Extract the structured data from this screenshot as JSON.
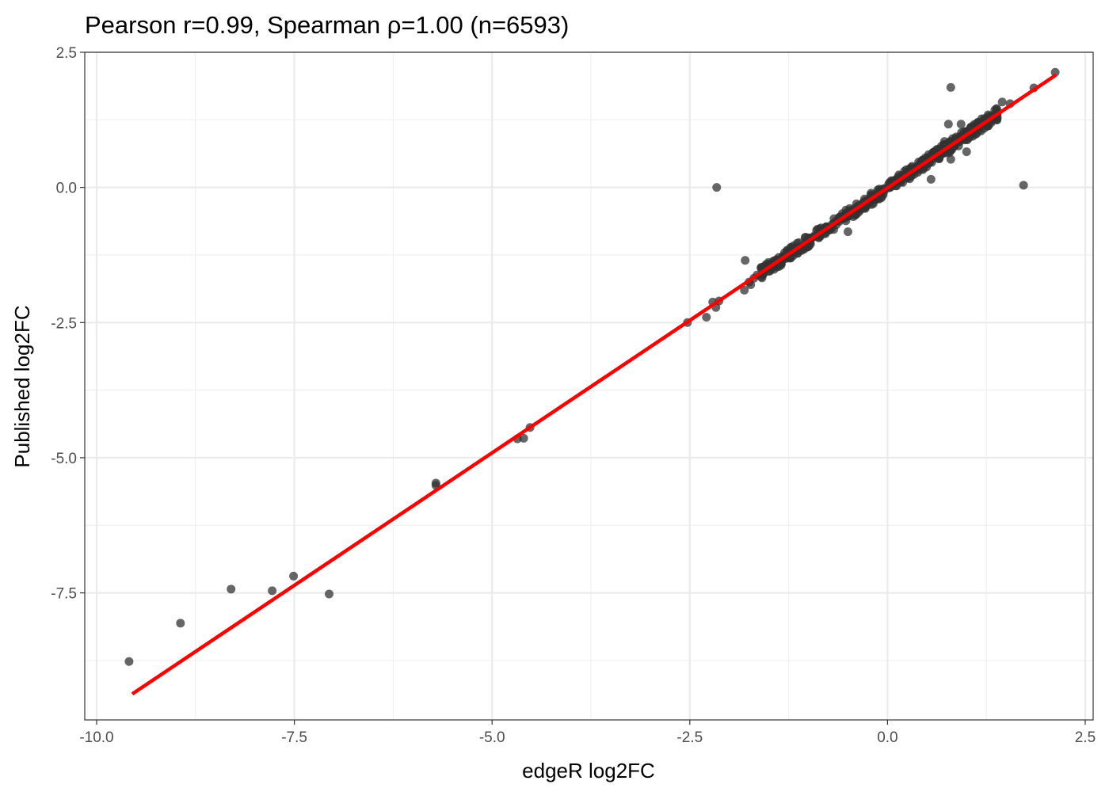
{
  "chart_data": {
    "type": "scatter",
    "title": "Pearson r=0.99, Spearman ρ=1.00 (n=6593)",
    "xlabel": "edgeR log2FC",
    "ylabel": "Published log2FC",
    "xlim": [
      -10.15,
      2.6
    ],
    "ylim": [
      -9.85,
      2.5
    ],
    "x_ticks": [
      -10.0,
      -7.5,
      -5.0,
      -2.5,
      0.0,
      2.5
    ],
    "x_tick_labels": [
      "-10.0",
      "-7.5",
      "-5.0",
      "-2.5",
      "0.0",
      "2.5"
    ],
    "y_ticks": [
      2.5,
      0.0,
      -2.5,
      -5.0,
      -7.5
    ],
    "y_tick_labels": [
      "2.5",
      "0.0",
      "-2.5",
      "-5.0",
      "-7.5"
    ],
    "grid": true,
    "legend": "none",
    "point_color": "#333333",
    "fit_line_color": "#ff0000",
    "series": [
      {
        "kind": "points",
        "x": [
          -9.59,
          -8.94,
          -8.3,
          -7.78,
          -7.51,
          -7.06,
          -5.71,
          -5.71,
          -4.68,
          -4.6,
          -4.52,
          -2.53,
          -2.29,
          -2.17,
          -2.21,
          -2.13,
          -1.81,
          -1.73,
          -1.75,
          -1.69,
          -1.65,
          -1.55,
          -1.43,
          -1.33,
          -1.24,
          -1.13,
          -1.04,
          -0.94,
          -0.85,
          -0.76,
          -0.68,
          -0.6,
          -0.52,
          -0.44,
          -0.36,
          -0.28,
          -0.2,
          -0.12,
          -0.04,
          0.04,
          0.12,
          0.2,
          0.28,
          0.36,
          0.44,
          0.52,
          0.6,
          0.68,
          0.76,
          0.84,
          0.92,
          1.0,
          1.1,
          1.2,
          1.3,
          1.39,
          1.45,
          1.55,
          1.85,
          2.12,
          -2.16,
          1.72,
          0.8,
          0.77,
          0.93,
          1.0,
          1.38,
          0.8,
          0.72,
          0.55,
          0.4,
          -0.18,
          -0.5,
          -1.8
        ],
        "y": [
          -8.77,
          -8.06,
          -7.43,
          -7.46,
          -7.19,
          -7.52,
          -5.51,
          -5.47,
          -4.65,
          -4.64,
          -4.44,
          -2.5,
          -2.4,
          -2.22,
          -2.12,
          -2.1,
          -1.9,
          -1.8,
          -1.75,
          -1.68,
          -1.62,
          -1.52,
          -1.4,
          -1.3,
          -1.22,
          -1.1,
          -1.02,
          -0.92,
          -0.82,
          -0.74,
          -0.66,
          -0.58,
          -0.49,
          -0.41,
          -0.33,
          -0.25,
          -0.17,
          -0.09,
          -0.02,
          0.06,
          0.14,
          0.22,
          0.3,
          0.38,
          0.46,
          0.54,
          0.62,
          0.7,
          0.78,
          0.86,
          0.94,
          1.02,
          1.12,
          1.2,
          1.3,
          1.4,
          1.58,
          1.55,
          1.84,
          2.13,
          0.0,
          0.04,
          1.85,
          1.17,
          1.17,
          0.66,
          1.46,
          0.52,
          0.85,
          0.15,
          0.38,
          -0.3,
          -0.82,
          -1.35
        ]
      },
      {
        "kind": "fit_line",
        "x": [
          -9.55,
          2.13
        ],
        "y": [
          -9.37,
          2.08
        ]
      }
    ]
  }
}
